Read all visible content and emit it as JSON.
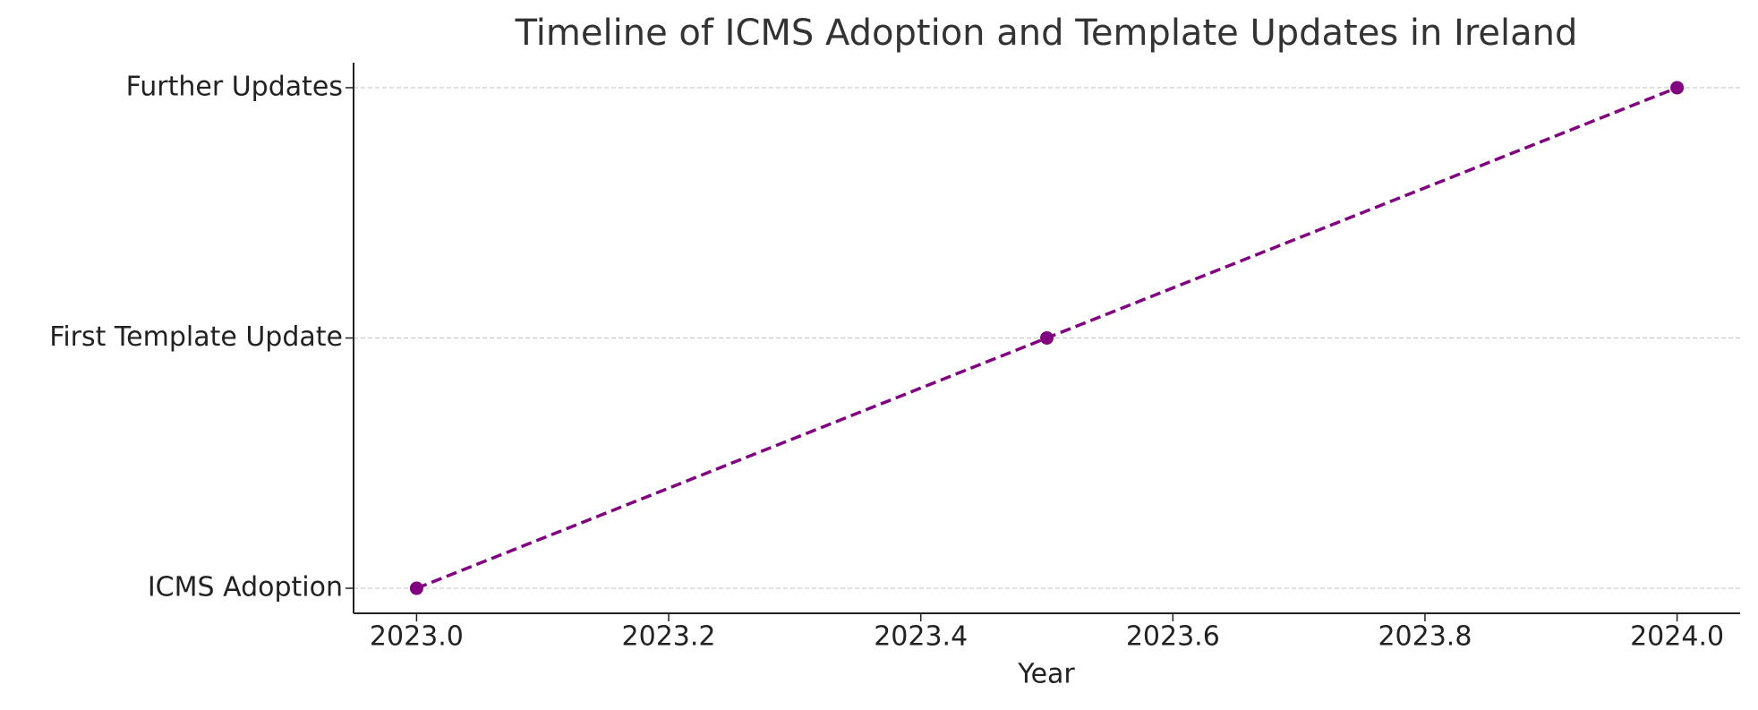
{
  "chart_data": {
    "type": "line",
    "title": "Timeline of ICMS Adoption and Template Updates in Ireland",
    "x_label": "Year",
    "categories": [
      "ICMS Adoption",
      "First Template Update",
      "Further Updates"
    ],
    "x": [
      2023.0,
      2023.5,
      2024.0
    ],
    "color": "#800080",
    "line_style": "dashed",
    "marker": "circle",
    "xlim": [
      2022.95,
      2024.05
    ],
    "xticks": [
      {
        "value": 2023.0,
        "label": "2023.0"
      },
      {
        "value": 2023.2,
        "label": "2023.2"
      },
      {
        "value": 2023.4,
        "label": "2023.4"
      },
      {
        "value": 2023.6,
        "label": "2023.6"
      },
      {
        "value": 2023.8,
        "label": "2023.8"
      },
      {
        "value": 2024.0,
        "label": "2024.0"
      }
    ],
    "grid": "y"
  }
}
